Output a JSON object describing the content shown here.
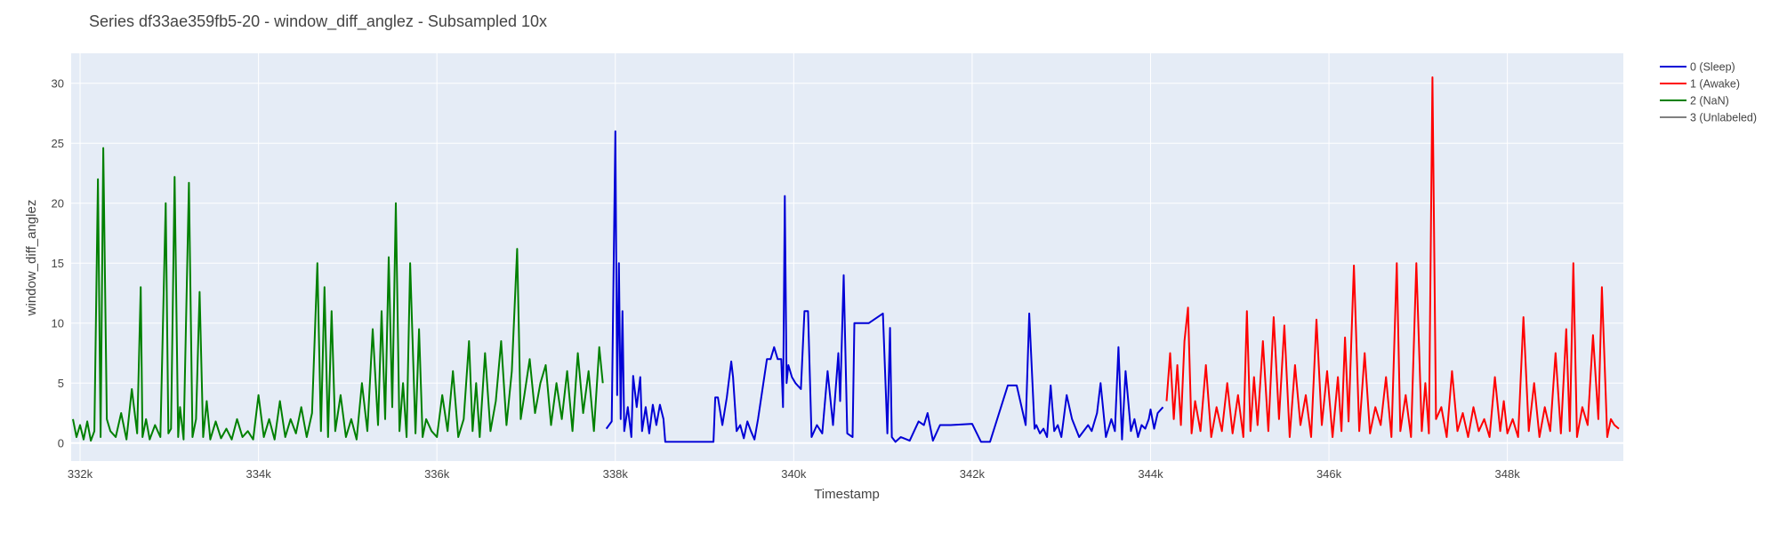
{
  "chart_data": {
    "type": "line",
    "title": "Series df33ae359fb5-20 - window_diff_anglez - Subsampled 10x",
    "xlabel": "Timestamp",
    "ylabel": "window_diff_anglez",
    "xlim": [
      331900,
      349300
    ],
    "ylim": [
      -1.5,
      32.5
    ],
    "x_ticks": [
      332000,
      334000,
      336000,
      338000,
      340000,
      342000,
      344000,
      346000,
      348000
    ],
    "x_tick_labels": [
      "332k",
      "334k",
      "336k",
      "338k",
      "340k",
      "342k",
      "344k",
      "346k",
      "348k"
    ],
    "y_ticks": [
      0,
      5,
      10,
      15,
      20,
      25,
      30
    ],
    "y_tick_labels": [
      "0",
      "5",
      "10",
      "15",
      "20",
      "25",
      "30"
    ],
    "grid": true,
    "legend": "right",
    "series": [
      {
        "name": "0 (Sleep)",
        "color": "#0000d6",
        "x": [
          337900,
          337960,
          338000,
          338020,
          338040,
          338060,
          338080,
          338100,
          338140,
          338180,
          338200,
          338240,
          338280,
          338300,
          338340,
          338380,
          338420,
          338460,
          338500,
          338540,
          338560,
          338600,
          338700,
          338900,
          339000,
          339100,
          339120,
          339150,
          339200,
          339250,
          339300,
          339320,
          339360,
          339400,
          339440,
          339480,
          339520,
          339560,
          339600,
          339640,
          339700,
          339740,
          339780,
          339820,
          339860,
          339880,
          339900,
          339920,
          339940,
          339980,
          340020,
          340080,
          340120,
          340160,
          340200,
          340260,
          340320,
          340380,
          340440,
          340500,
          340520,
          340560,
          340600,
          340660,
          340680,
          340720,
          340760,
          340800,
          340840,
          341000,
          341050,
          341080,
          341100,
          341140,
          341200,
          341300,
          341400,
          341460,
          341500,
          341560,
          341640,
          341700,
          341760,
          342000,
          342100,
          342140,
          342200,
          342400,
          342500,
          342600,
          342640,
          342700,
          342720,
          342760,
          342800,
          342840,
          342880,
          342920,
          342960,
          343000,
          343060,
          343120,
          343200,
          343300,
          343340,
          343400,
          343440,
          343500,
          343560,
          343600,
          343640,
          343680,
          343720,
          343780,
          343820,
          343860,
          343900,
          343940,
          343980,
          344000,
          344040,
          344080,
          344140
        ],
        "y": [
          1.2,
          1.8,
          26.0,
          4.0,
          15.0,
          2.0,
          11.0,
          1.0,
          3.0,
          0.5,
          5.6,
          3.0,
          5.5,
          1.0,
          3.0,
          0.8,
          3.2,
          1.5,
          3.2,
          2.0,
          0.1,
          0.1,
          0.1,
          0.1,
          0.1,
          0.1,
          3.8,
          3.8,
          1.5,
          3.8,
          6.8,
          5.5,
          1.0,
          1.5,
          0.4,
          1.8,
          1.0,
          0.3,
          2.0,
          4.0,
          7.0,
          7.0,
          8.0,
          7.0,
          7.0,
          3.0,
          20.6,
          5.0,
          6.5,
          5.5,
          5.0,
          4.5,
          11.0,
          11.0,
          0.5,
          1.5,
          0.8,
          6.0,
          1.5,
          7.5,
          3.5,
          14.0,
          0.8,
          0.5,
          10.0,
          10.0,
          10.0,
          10.0,
          10.0,
          10.8,
          0.8,
          9.6,
          0.5,
          0.1,
          0.5,
          0.2,
          1.8,
          1.5,
          2.5,
          0.2,
          1.5,
          1.5,
          1.5,
          1.6,
          0.1,
          0.1,
          0.1,
          4.8,
          4.8,
          1.5,
          10.8,
          1.2,
          1.5,
          0.8,
          1.2,
          0.5,
          4.8,
          1.0,
          1.5,
          0.5,
          4.0,
          2.0,
          0.5,
          1.5,
          1.0,
          2.5,
          5.0,
          0.5,
          2.0,
          1.0,
          8.0,
          0.3,
          6.0,
          1.0,
          2.0,
          0.5,
          1.5,
          1.2,
          2.0,
          2.8,
          1.2,
          2.5,
          3.0
        ]
      },
      {
        "name": "1 (Awake)",
        "color": "#ff0000",
        "x": [
          344180,
          344220,
          344260,
          344300,
          344340,
          344380,
          344420,
          344460,
          344500,
          344560,
          344620,
          344680,
          344740,
          344800,
          344860,
          344920,
          344980,
          345040,
          345080,
          345120,
          345160,
          345200,
          345260,
          345320,
          345380,
          345440,
          345500,
          345560,
          345620,
          345680,
          345740,
          345800,
          345860,
          345920,
          345980,
          346040,
          346100,
          346140,
          346180,
          346220,
          346280,
          346340,
          346400,
          346460,
          346520,
          346580,
          346640,
          346700,
          346760,
          346800,
          346860,
          346920,
          346980,
          347040,
          347080,
          347120,
          347160,
          347200,
          347260,
          347320,
          347380,
          347440,
          347500,
          347560,
          347620,
          347680,
          347740,
          347800,
          347860,
          347920,
          347960,
          348000,
          348060,
          348120,
          348180,
          348240,
          348300,
          348360,
          348420,
          348480,
          348540,
          348600,
          348660,
          348700,
          348740,
          348780,
          348840,
          348900,
          348960,
          349020,
          349060,
          349120,
          349160,
          349200,
          349250
        ],
        "y": [
          3.5,
          7.5,
          2.0,
          6.5,
          1.5,
          8.5,
          11.3,
          0.8,
          3.5,
          1.0,
          6.5,
          0.5,
          3.0,
          1.0,
          5.0,
          0.8,
          4.0,
          0.5,
          11.0,
          1.0,
          5.5,
          1.5,
          8.5,
          1.0,
          10.5,
          2.0,
          9.8,
          0.5,
          6.5,
          1.5,
          4.0,
          0.5,
          10.3,
          1.5,
          6.0,
          0.5,
          5.5,
          1.0,
          8.8,
          1.8,
          14.8,
          1.0,
          7.5,
          0.8,
          3.0,
          1.5,
          5.5,
          0.5,
          15.0,
          1.0,
          4.0,
          0.5,
          15.0,
          1.0,
          5.0,
          0.8,
          30.5,
          2.0,
          3.0,
          0.5,
          6.0,
          1.0,
          2.5,
          0.5,
          3.0,
          1.0,
          2.0,
          0.5,
          5.5,
          1.0,
          3.5,
          0.8,
          2.0,
          0.5,
          10.5,
          1.0,
          5.0,
          0.5,
          3.0,
          1.0,
          7.5,
          0.8,
          9.5,
          1.0,
          15.0,
          0.5,
          3.0,
          1.5,
          9.0,
          2.0,
          13.0,
          0.5,
          2.0,
          1.5,
          1.2
        ]
      },
      {
        "name": "2 (NaN)",
        "color": "#008000",
        "x": [
          331920,
          331960,
          332000,
          332040,
          332080,
          332120,
          332160,
          332200,
          332230,
          332260,
          332300,
          332340,
          332400,
          332460,
          332520,
          332580,
          332640,
          332680,
          332700,
          332740,
          332780,
          332840,
          332900,
          332960,
          332990,
          333020,
          333060,
          333100,
          333120,
          333160,
          333220,
          333260,
          333300,
          333340,
          333380,
          333420,
          333460,
          333520,
          333580,
          333640,
          333700,
          333760,
          333820,
          333880,
          333940,
          334000,
          334060,
          334120,
          334180,
          334240,
          334300,
          334360,
          334420,
          334480,
          334540,
          334600,
          334660,
          334700,
          334740,
          334780,
          334820,
          334860,
          334920,
          334980,
          335040,
          335100,
          335160,
          335220,
          335280,
          335340,
          335380,
          335420,
          335460,
          335500,
          335540,
          335580,
          335620,
          335660,
          335700,
          335760,
          335800,
          335840,
          335880,
          335940,
          336000,
          336060,
          336120,
          336180,
          336240,
          336300,
          336360,
          336400,
          336440,
          336480,
          336540,
          336600,
          336660,
          336720,
          336780,
          336840,
          336900,
          336940,
          336980,
          337040,
          337100,
          337160,
          337220,
          337280,
          337340,
          337400,
          337460,
          337520,
          337580,
          337640,
          337700,
          337760,
          337820,
          337860
        ],
        "y": [
          2.0,
          0.5,
          1.5,
          0.3,
          1.8,
          0.2,
          1.0,
          22.0,
          0.5,
          24.6,
          2.0,
          1.0,
          0.5,
          2.5,
          0.3,
          4.5,
          0.8,
          13.0,
          0.5,
          2.0,
          0.3,
          1.5,
          0.5,
          20.0,
          0.8,
          1.2,
          22.2,
          0.5,
          3.0,
          0.3,
          21.7,
          0.5,
          2.0,
          12.6,
          0.5,
          3.5,
          0.3,
          1.8,
          0.4,
          1.2,
          0.3,
          2.0,
          0.5,
          1.0,
          0.3,
          4.0,
          0.5,
          2.0,
          0.3,
          3.5,
          0.5,
          2.0,
          0.8,
          3.0,
          0.5,
          2.5,
          15.0,
          1.0,
          13.0,
          0.5,
          11.0,
          1.0,
          4.0,
          0.5,
          2.0,
          0.3,
          5.0,
          1.0,
          9.5,
          1.5,
          11.0,
          2.0,
          15.5,
          3.0,
          20.0,
          1.0,
          5.0,
          0.5,
          15.0,
          0.8,
          9.5,
          0.5,
          2.0,
          1.0,
          0.5,
          4.0,
          1.0,
          6.0,
          0.5,
          2.0,
          8.5,
          1.0,
          5.0,
          0.5,
          7.5,
          1.0,
          3.5,
          8.5,
          1.5,
          6.0,
          16.2,
          2.0,
          4.0,
          7.0,
          2.5,
          5.0,
          6.5,
          1.5,
          5.0,
          2.0,
          6.0,
          1.0,
          7.5,
          2.5,
          6.0,
          1.0,
          8.0,
          5.0
        ]
      },
      {
        "name": "3 (Unlabeled)",
        "color": "#808080",
        "x": [],
        "y": []
      }
    ]
  }
}
